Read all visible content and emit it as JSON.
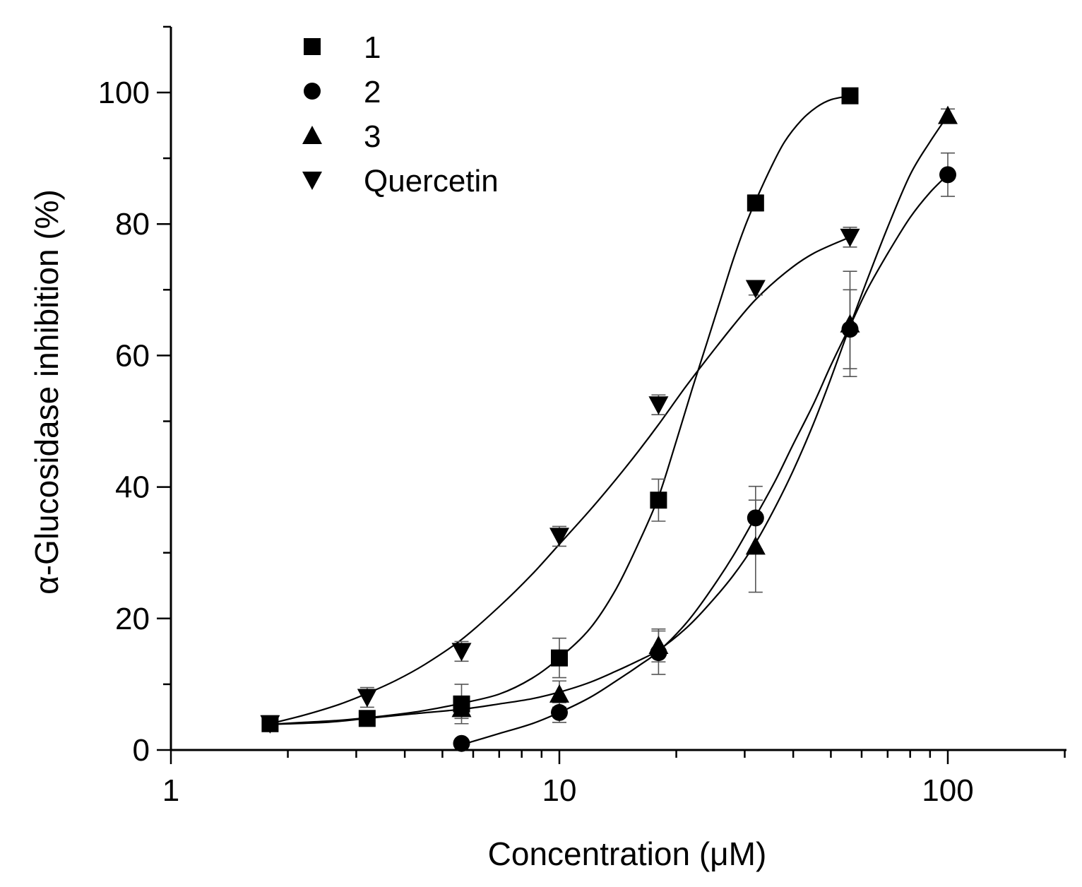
{
  "chart_data": {
    "type": "scatter",
    "title": "",
    "xlabel": "Concentration (μM)",
    "ylabel": "α-Glucosidase inhibition (%)",
    "xscale": "log",
    "xlim": [
      1,
      200
    ],
    "ylim": [
      0,
      110
    ],
    "x_ticks": [
      1,
      10,
      100
    ],
    "x_tick_labels": [
      "1",
      "10",
      "100"
    ],
    "y_ticks": [
      0,
      20,
      40,
      60,
      80,
      100
    ],
    "y_tick_labels": [
      "0",
      "20",
      "40",
      "60",
      "80",
      "100"
    ],
    "legend_position": "top-left",
    "series": [
      {
        "name": "1",
        "marker": "square",
        "x": [
          1.8,
          3.2,
          5.6,
          10,
          18,
          32,
          56
        ],
        "y": [
          4.0,
          4.8,
          7.0,
          14.0,
          38.0,
          83.2,
          99.5
        ],
        "err": [
          1.0,
          1.0,
          3.0,
          3.0,
          3.2,
          1.2,
          0.5
        ],
        "curve_x": [
          1.8,
          2.2,
          2.7,
          3.2,
          3.8,
          4.5,
          5.6,
          7,
          8.5,
          10,
          12,
          14,
          16,
          18,
          20,
          22,
          24,
          26,
          28,
          30,
          32,
          35,
          38,
          42,
          46,
          50,
          56
        ],
        "curve_y": [
          3.9,
          4.2,
          4.5,
          4.9,
          5.4,
          6.0,
          7.1,
          8.5,
          10.9,
          14.0,
          18.5,
          24.5,
          31.5,
          38.5,
          47.0,
          55.0,
          62.0,
          68.5,
          74.5,
          79.5,
          83.5,
          88.5,
          92.5,
          95.8,
          97.8,
          98.9,
          99.5
        ]
      },
      {
        "name": "2",
        "marker": "circle",
        "x": [
          5.6,
          10,
          18,
          32,
          56,
          100
        ],
        "y": [
          1.0,
          5.7,
          14.8,
          35.3,
          64.0,
          87.5
        ],
        "err": [
          0.5,
          1.5,
          3.3,
          4.8,
          6.0,
          3.3
        ],
        "curve_x": [
          5.6,
          7,
          8.5,
          10,
          12,
          14,
          16,
          18,
          21,
          24,
          28,
          32,
          36,
          40,
          45,
          50,
          56,
          62,
          70,
          80,
          90,
          100
        ],
        "curve_y": [
          0.8,
          2.5,
          4.0,
          5.7,
          8.0,
          10.5,
          12.8,
          15.0,
          19.0,
          23.5,
          29.5,
          35.5,
          41.0,
          46.5,
          52.5,
          58.5,
          64.5,
          70.0,
          75.5,
          81.0,
          84.8,
          87.5
        ]
      },
      {
        "name": "3",
        "marker": "triangle-up",
        "x": [
          5.6,
          10,
          18,
          32,
          56,
          100
        ],
        "y": [
          6.3,
          8.5,
          15.9,
          31.0,
          64.8,
          96.5
        ],
        "err": [
          1.5,
          2.0,
          2.5,
          7.0,
          8.0,
          1.0
        ],
        "curve_x": [
          1.8,
          2.5,
          3.2,
          4.2,
          5.6,
          7,
          8.5,
          10,
          12,
          14,
          16,
          18,
          21,
          24,
          28,
          32,
          36,
          40,
          45,
          50,
          56,
          62,
          70,
          80,
          90,
          100
        ],
        "curve_y": [
          3.9,
          4.2,
          4.8,
          5.5,
          6.2,
          7.0,
          7.8,
          8.8,
          10.3,
          12.0,
          13.6,
          15.2,
          18.3,
          21.8,
          26.5,
          31.5,
          37.0,
          42.5,
          49.5,
          56.5,
          64.5,
          71.5,
          79.5,
          87.5,
          92.5,
          96.5
        ]
      },
      {
        "name": "Quercetin",
        "marker": "triangle-down",
        "x": [
          1.8,
          3.2,
          5.6,
          10,
          18,
          32,
          56
        ],
        "y": [
          4.0,
          8.0,
          15.0,
          32.5,
          52.5,
          70.2,
          78.0
        ],
        "err": [
          1.0,
          1.5,
          1.5,
          1.5,
          1.5,
          1.0,
          1.5
        ],
        "curve_x": [
          1.8,
          2.2,
          2.7,
          3.2,
          3.8,
          4.5,
          5.6,
          7,
          8.5,
          10,
          12,
          14,
          16,
          18,
          21,
          24,
          28,
          32,
          38,
          45,
          56
        ],
        "curve_y": [
          4.0,
          5.3,
          6.9,
          8.6,
          10.6,
          13.0,
          16.8,
          21.8,
          26.7,
          31.3,
          36.5,
          41.2,
          45.5,
          49.5,
          55.0,
          59.5,
          64.5,
          68.5,
          72.5,
          75.5,
          78.0
        ]
      }
    ]
  }
}
